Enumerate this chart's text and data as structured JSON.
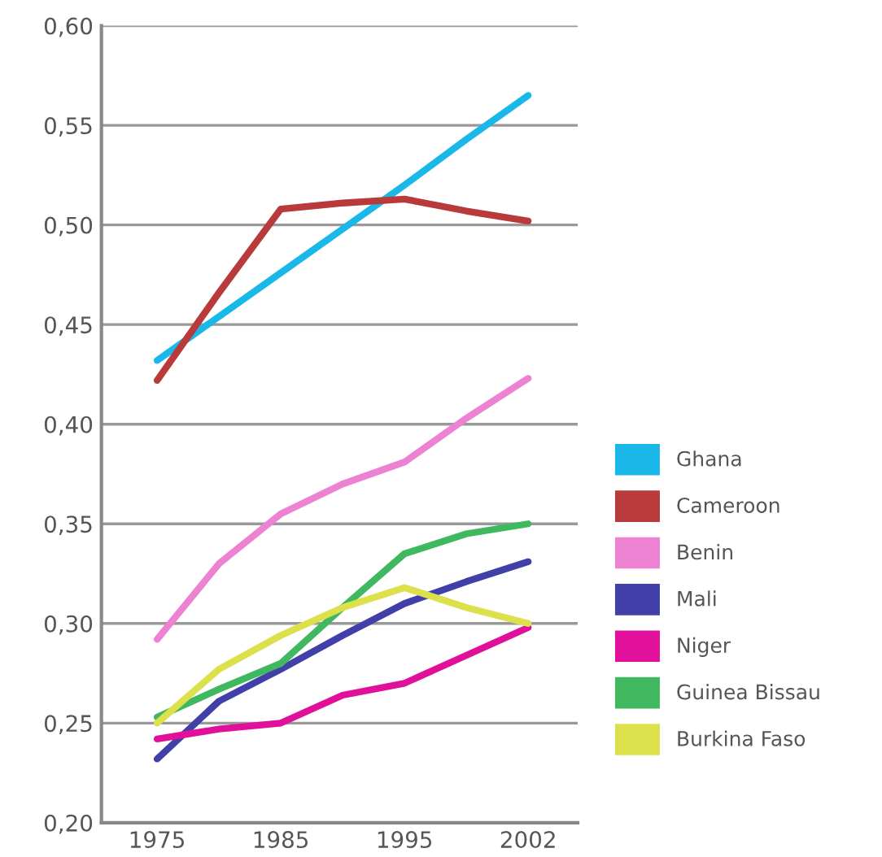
{
  "chart_data": {
    "type": "line",
    "categories": [
      "1975",
      null,
      "1985",
      null,
      "1995",
      null,
      "2002"
    ],
    "series": [
      {
        "name": "Ghana",
        "color": "#1ab8e8",
        "values": [
          0.432,
          0.454,
          0.476,
          0.498,
          0.52,
          0.543,
          0.565
        ]
      },
      {
        "name": "Cameroon",
        "color": "#b83a3a",
        "values": [
          0.422,
          0.466,
          0.508,
          0.511,
          0.513,
          0.507,
          0.502
        ]
      },
      {
        "name": "Benin",
        "color": "#ee82d2",
        "values": [
          0.292,
          0.33,
          0.355,
          0.37,
          0.381,
          0.403,
          0.423
        ]
      },
      {
        "name": "Mali",
        "color": "#4040a8",
        "values": [
          0.232,
          0.261,
          0.277,
          0.294,
          0.31,
          0.321,
          0.331
        ]
      },
      {
        "name": "Niger",
        "color": "#e0109a",
        "values": [
          0.242,
          0.247,
          0.25,
          0.264,
          0.27,
          0.284,
          0.298
        ]
      },
      {
        "name": "Guinea Bissau",
        "color": "#40b860",
        "values": [
          0.253,
          0.267,
          0.28,
          0.308,
          0.335,
          0.345,
          0.35
        ]
      },
      {
        "name": "Burkina Faso",
        "color": "#dce04a",
        "values": [
          0.25,
          0.277,
          0.294,
          0.308,
          0.318,
          0.308,
          0.3
        ]
      }
    ],
    "ylim": [
      0.2,
      0.6
    ],
    "yticks": [
      {
        "value": 0.2,
        "label": "0,20"
      },
      {
        "value": 0.25,
        "label": "0,25"
      },
      {
        "value": 0.3,
        "label": "0,30"
      },
      {
        "value": 0.35,
        "label": "0,35"
      },
      {
        "value": 0.4,
        "label": "0,40"
      },
      {
        "value": 0.45,
        "label": "0,45"
      },
      {
        "value": 0.5,
        "label": "0,50"
      },
      {
        "value": 0.55,
        "label": "0,55"
      },
      {
        "value": 0.6,
        "label": "0,60"
      }
    ],
    "grid": "y",
    "legend": "right",
    "marker": "none",
    "line_style": "solid"
  }
}
